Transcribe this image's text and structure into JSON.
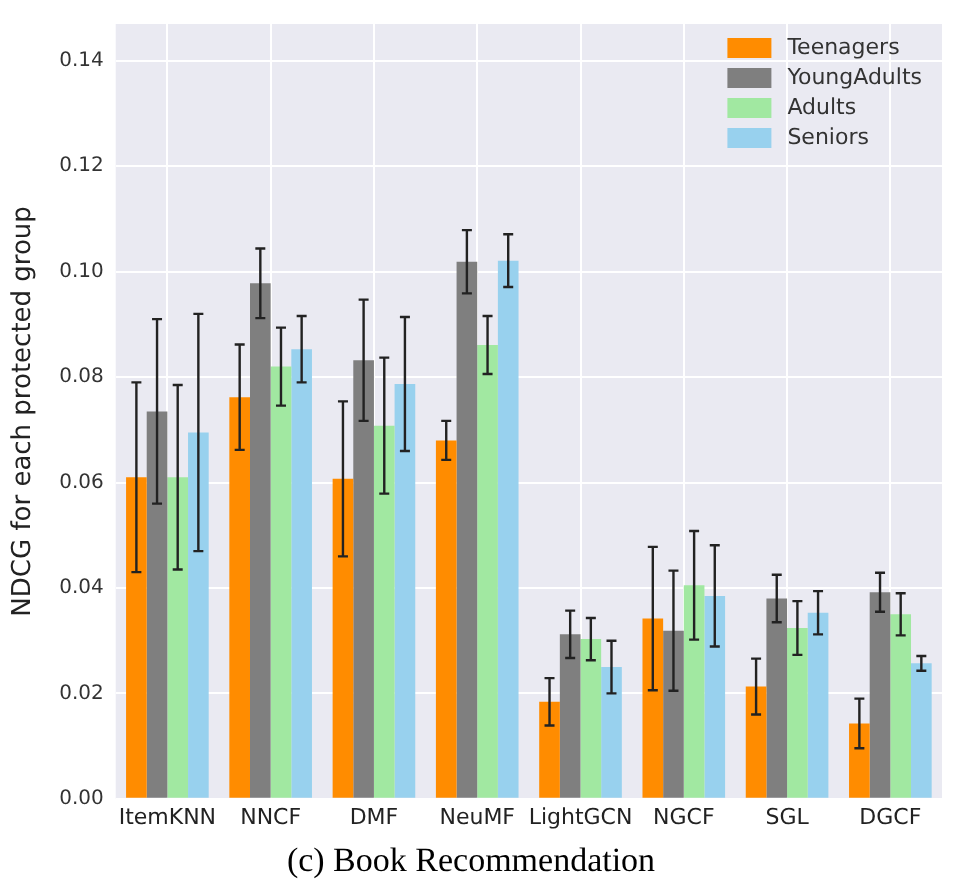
{
  "chart_data": {
    "type": "bar",
    "title": "(c) Book Recommendation",
    "ylabel": "NDCG for each protected group",
    "categories": [
      "ItemKNN",
      "NNCF",
      "DMF",
      "NeuMF",
      "LightGCN",
      "NGCF",
      "SGL",
      "DGCF"
    ],
    "series": [
      {
        "name": "Teenagers",
        "color": "#ff8c00",
        "values": [
          0.061,
          0.0762,
          0.0607,
          0.068,
          0.0184,
          0.0342,
          0.0213,
          0.0143
        ],
        "errors": [
          0.018,
          0.01,
          0.0147,
          0.0037,
          0.0045,
          0.0136,
          0.0053,
          0.0047
        ]
      },
      {
        "name": "YoungAdults",
        "color": "#7f7f7f",
        "values": [
          0.0735,
          0.0978,
          0.0832,
          0.1019,
          0.0312,
          0.0319,
          0.038,
          0.0392
        ],
        "errors": [
          0.0175,
          0.0066,
          0.0115,
          0.006,
          0.0045,
          0.0114,
          0.0045,
          0.0037
        ]
      },
      {
        "name": "Adults",
        "color": "#a1e8a1",
        "values": [
          0.061,
          0.082,
          0.0708,
          0.0861,
          0.0303,
          0.0405,
          0.0324,
          0.035
        ],
        "errors": [
          0.0175,
          0.0074,
          0.0129,
          0.0055,
          0.004,
          0.0103,
          0.0051,
          0.004
        ]
      },
      {
        "name": "Seniors",
        "color": "#98d1ee",
        "values": [
          0.0695,
          0.0853,
          0.0787,
          0.1021,
          0.025,
          0.0385,
          0.0353,
          0.0257
        ],
        "errors": [
          0.0225,
          0.0063,
          0.0127,
          0.005,
          0.005,
          0.0096,
          0.0041,
          0.0014
        ]
      }
    ],
    "ylim": [
      0,
      0.147
    ],
    "yticks": [
      {
        "value": 0,
        "label": "0.00"
      },
      {
        "value": 0.02,
        "label": "0.02"
      },
      {
        "value": 0.04,
        "label": "0.04"
      },
      {
        "value": 0.06,
        "label": "0.06"
      },
      {
        "value": 0.08,
        "label": "0.08"
      },
      {
        "value": 0.1,
        "label": "0.10"
      },
      {
        "value": 0.12,
        "label": "0.12"
      },
      {
        "value": 0.14,
        "label": "0.14"
      }
    ],
    "grid": true,
    "legend": "top right"
  }
}
